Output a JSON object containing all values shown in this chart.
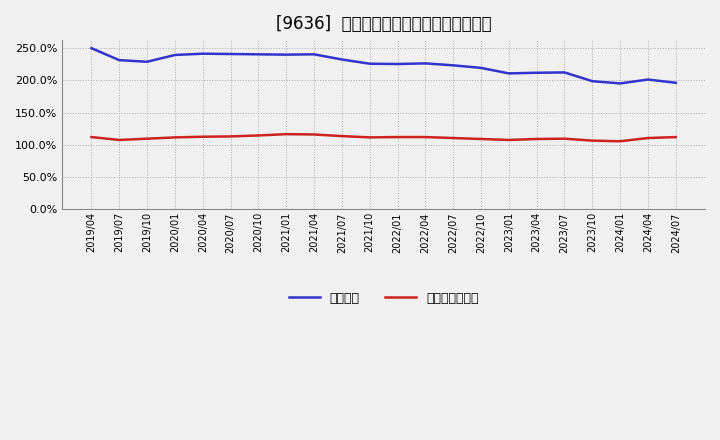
{
  "title": "[9636]  固定比率、固定長期適合率の推移",
  "title_fontsize": 12,
  "background_color": "#f0f0f0",
  "plot_background_color": "#f0f0f0",
  "grid_color": "#aaaaaa",
  "x_labels": [
    "2019/04",
    "2019/07",
    "2019/10",
    "2020/01",
    "2020/04",
    "2020/07",
    "2020/10",
    "2021/01",
    "2021/04",
    "2021/07",
    "2021/10",
    "2022/01",
    "2022/04",
    "2022/07",
    "2022/10",
    "2023/01",
    "2023/04",
    "2023/07",
    "2023/10",
    "2024/01",
    "2024/04",
    "2024/07"
  ],
  "fixed_ratio": [
    249.5,
    231.0,
    228.5,
    239.0,
    241.0,
    240.5,
    240.0,
    239.5,
    240.0,
    232.0,
    225.5,
    225.0,
    226.0,
    223.0,
    219.0,
    210.5,
    211.5,
    212.0,
    198.5,
    195.0,
    201.0,
    196.0
  ],
  "long_term_ratio": [
    112.0,
    107.5,
    109.5,
    111.5,
    112.5,
    113.0,
    114.5,
    116.5,
    116.0,
    113.5,
    111.5,
    112.0,
    112.0,
    110.5,
    109.0,
    107.5,
    109.0,
    109.5,
    106.5,
    105.5,
    110.5,
    112.0
  ],
  "line_color_fixed": "#3333cc",
  "line_color_long": "#cc2222",
  "ylim": [
    0,
    262
  ],
  "yticks": [
    0,
    50,
    100,
    150,
    200,
    250
  ],
  "legend_fixed": "固定比率",
  "legend_long": "固定長期適合率"
}
